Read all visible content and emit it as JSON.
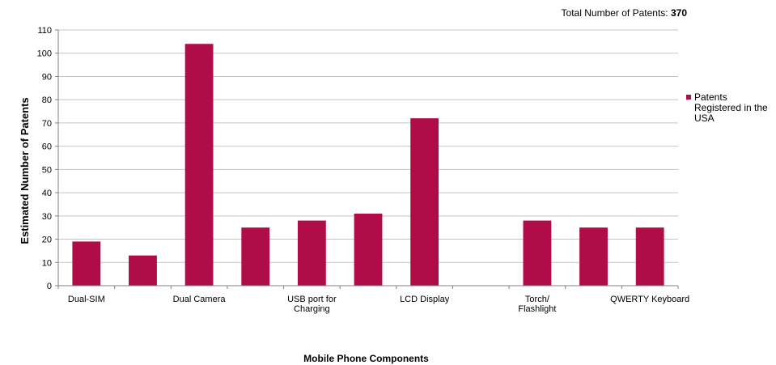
{
  "header": {
    "total_label": "Total Number of Patents:",
    "total_value": "370"
  },
  "chart_data": {
    "type": "bar",
    "categories": [
      "Dual-SIM",
      "",
      "Dual Camera",
      "",
      "USB port for Charging",
      "",
      "LCD Display",
      "",
      "Torch/ Flashlight",
      "",
      "QWERTY Keyboard"
    ],
    "tick_labels": [
      [
        "Dual-SIM"
      ],
      [],
      [
        "Dual Camera"
      ],
      [],
      [
        "USB port for",
        "Charging"
      ],
      [],
      [
        "LCD Display"
      ],
      [],
      [
        "Torch/",
        "Flashlight"
      ],
      [],
      [
        "QWERTY Keyboard"
      ]
    ],
    "series": [
      {
        "name": "Patents Registered in the USA",
        "values": [
          19,
          13,
          104,
          25,
          28,
          31,
          72,
          0,
          28,
          25,
          25
        ]
      }
    ],
    "xlabel": "Mobile Phone Components",
    "ylabel": "Estimated Number of Patents",
    "ylim": [
      0,
      110
    ],
    "yticks": [
      0,
      10,
      20,
      30,
      40,
      50,
      60,
      70,
      80,
      90,
      100,
      110
    ],
    "grid": true,
    "legend_position": "right",
    "bar_color": "#b00c48"
  },
  "legend": {
    "label": "Patents Registered in the USA"
  }
}
